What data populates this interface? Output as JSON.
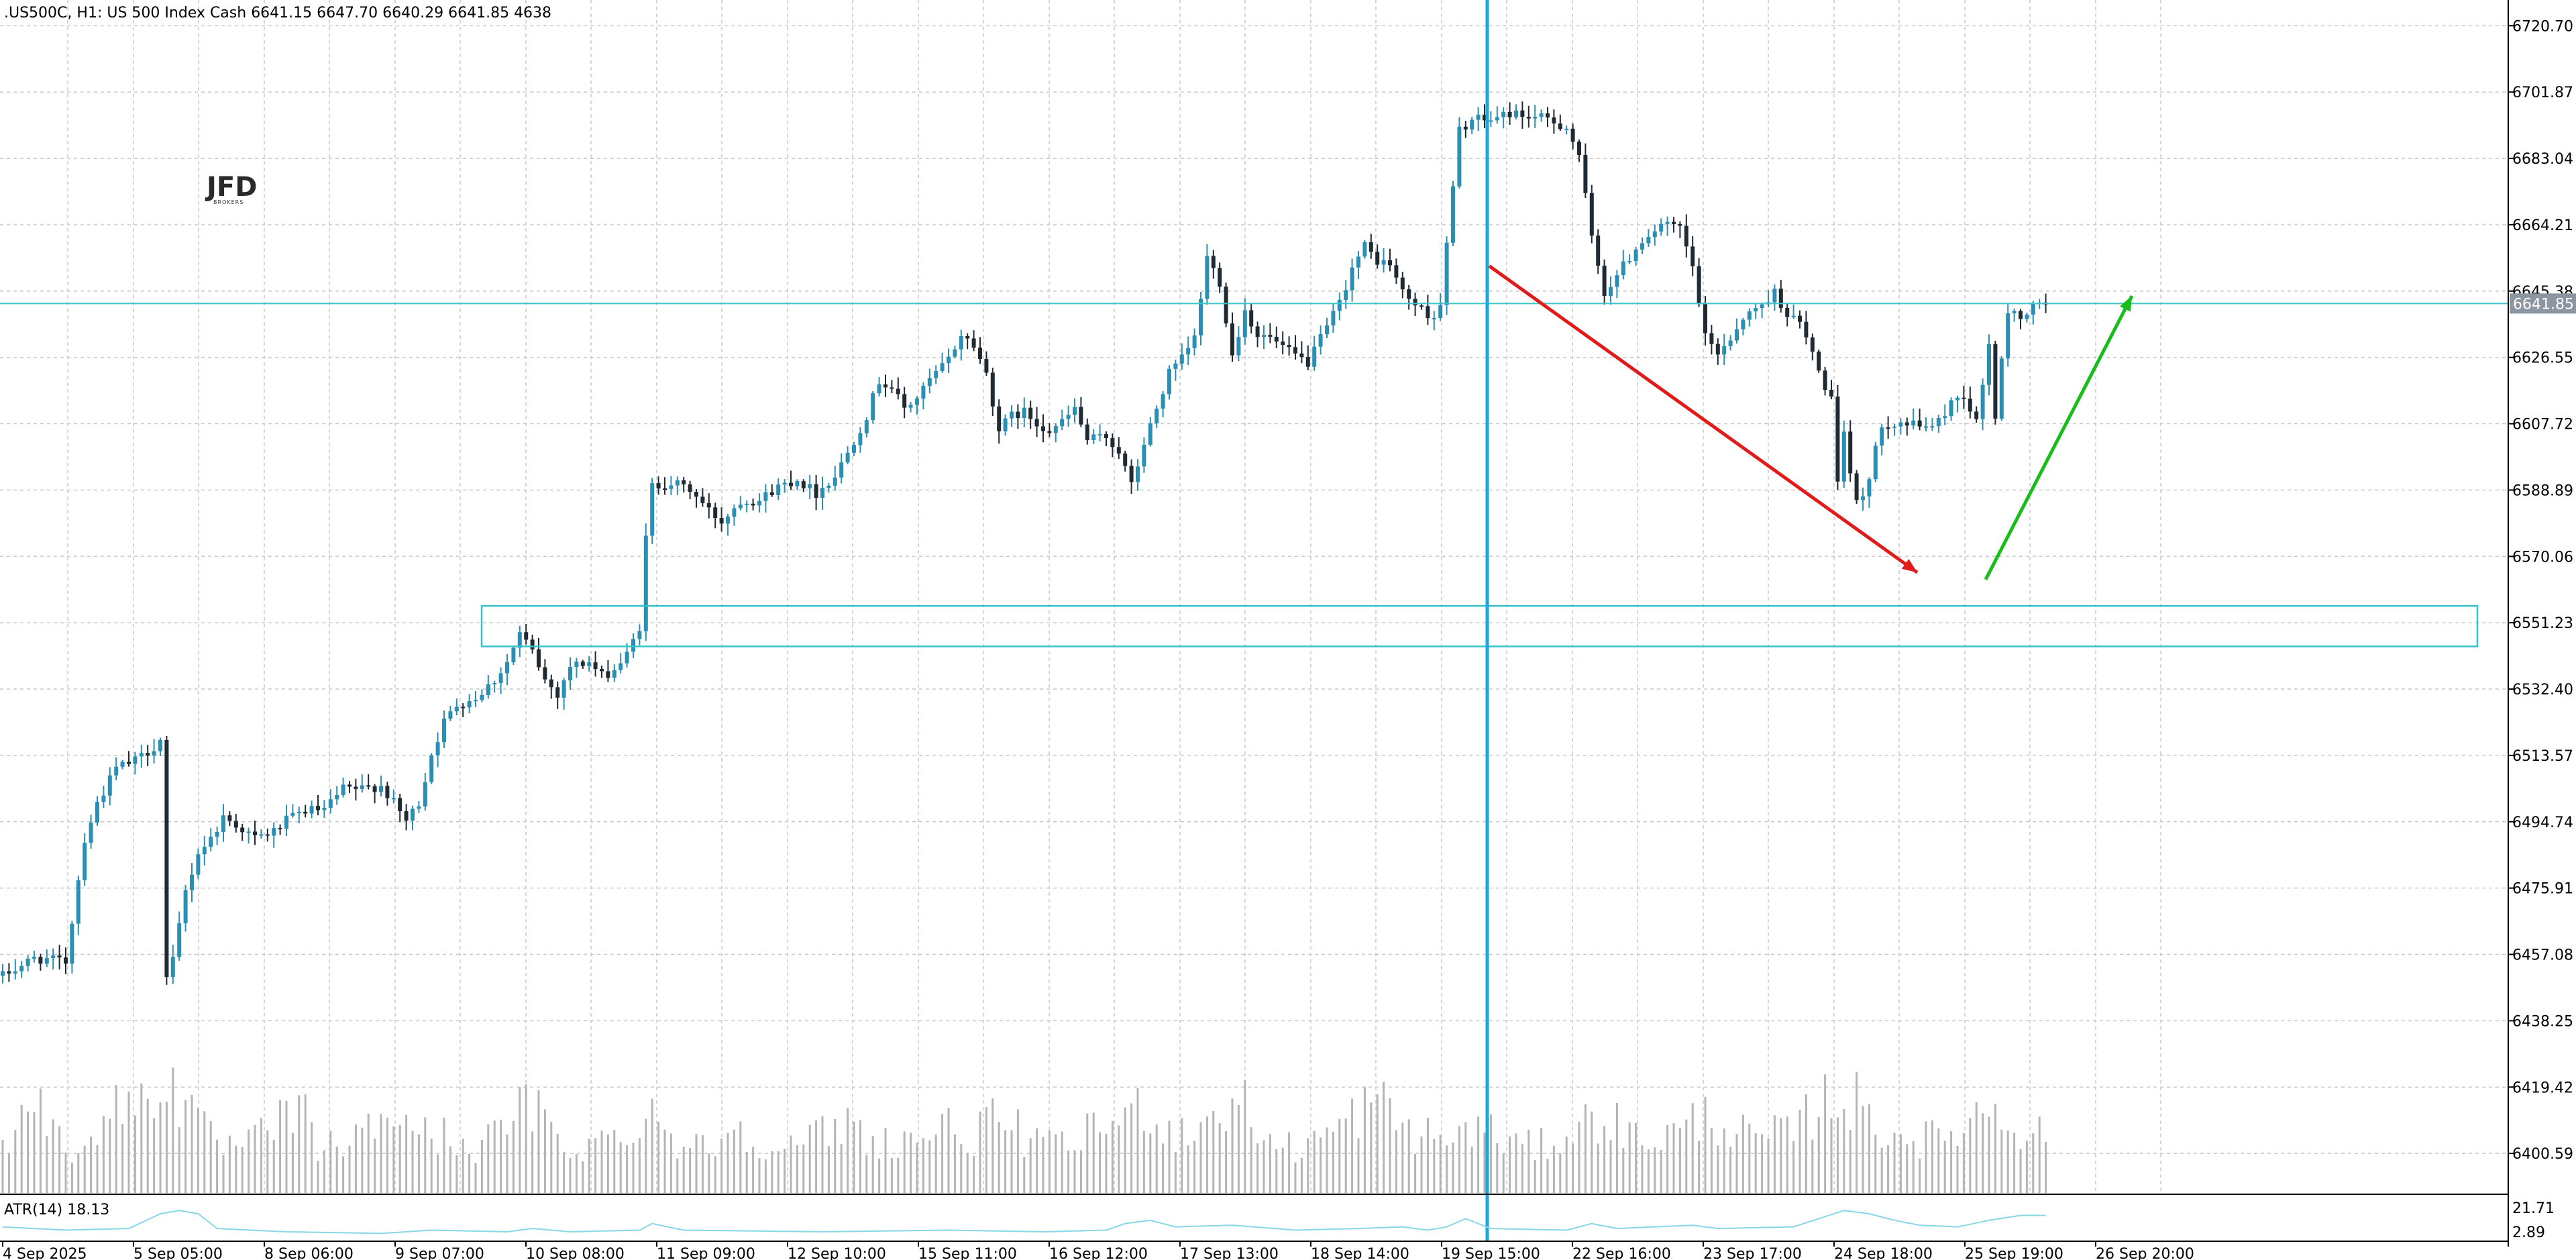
{
  "header": {
    "symbol_text": ".US500C, H1:  US 500 Index Cash  6641.15 6647.70 6640.29 6641.85  4638"
  },
  "logo": {
    "main": "JFD",
    "sub": "BROKERS"
  },
  "indicator": {
    "label": "ATR(14) 18.13",
    "scale_top": "21.71",
    "scale_bottom": "2.89",
    "line_color": "#87d7e6"
  },
  "current_price": {
    "label": "6641.85",
    "value": 6641.85,
    "line_color": "#3cc4cc",
    "label_bg": "#8c96a0"
  },
  "colors": {
    "bull": "#2b8fb3",
    "bear": "#1f2a33",
    "volume": "#b4b4b4",
    "grid": "#c8c8c8",
    "zone": "#34c3cc",
    "vline": "#1aa8e0",
    "down_arrow": "#e11a1a",
    "up_arrow": "#19bd19"
  },
  "annotations": {
    "vertical_line_time": "19 Sep 15:00",
    "support_zone": {
      "from": 6544.5,
      "to": 6556.0,
      "start_time": "10 Sep 08:00"
    },
    "down_arrow": {
      "from_time": "19 Sep 15:00",
      "from_price": 6652.5,
      "to_time": "25 Sep 01:00",
      "to_price": 6565.5
    },
    "up_arrow": {
      "from_time": "25 Sep 07:00",
      "from_price": 6563.5,
      "to_time": "26 Sep 16:00",
      "to_price": 6644.0
    }
  },
  "chart_data": {
    "type": "candlestick",
    "symbol": ".US500C",
    "timeframe": "H1",
    "ylim": [
      6389.0,
      6728.0
    ],
    "y_ticks": [
      "6720.70",
      "6701.87",
      "6683.04",
      "6664.21",
      "6645.38",
      "6626.55",
      "6607.72",
      "6588.89",
      "6570.06",
      "6551.23",
      "6532.40",
      "6513.57",
      "6494.74",
      "6475.91",
      "6457.08",
      "6438.25",
      "6419.42",
      "6400.59"
    ],
    "x_ticks": [
      "4 Sep 2025",
      "5 Sep 05:00",
      "8 Sep 06:00",
      "9 Sep 07:00",
      "10 Sep 08:00",
      "11 Sep 09:00",
      "12 Sep 10:00",
      "15 Sep 11:00",
      "16 Sep 12:00",
      "17 Sep 13:00",
      "18 Sep 14:00",
      "19 Sep 15:00",
      "22 Sep 16:00",
      "23 Sep 17:00",
      "24 Sep 18:00",
      "25 Sep 19:00",
      "26 Sep 20:00"
    ],
    "close_path": [
      [
        0,
        6451
      ],
      [
        5,
        6456
      ],
      [
        10,
        6455
      ],
      [
        13,
        6490
      ],
      [
        15,
        6500
      ],
      [
        18,
        6510
      ],
      [
        21,
        6512
      ],
      [
        24,
        6516
      ],
      [
        25,
        6518
      ],
      [
        26,
        6450
      ],
      [
        27,
        6455
      ],
      [
        29,
        6475
      ],
      [
        31,
        6486
      ],
      [
        33,
        6490
      ],
      [
        35,
        6496
      ],
      [
        37,
        6494
      ],
      [
        40,
        6490
      ],
      [
        43,
        6492
      ],
      [
        45,
        6495
      ],
      [
        48,
        6498
      ],
      [
        51,
        6498
      ],
      [
        54,
        6504
      ],
      [
        57,
        6504
      ],
      [
        60,
        6505
      ],
      [
        62,
        6500
      ],
      [
        64,
        6495
      ],
      [
        66,
        6500
      ],
      [
        68,
        6514
      ],
      [
        70,
        6523
      ],
      [
        72,
        6528
      ],
      [
        75,
        6530
      ],
      [
        78,
        6535
      ],
      [
        80,
        6540
      ],
      [
        82,
        6548
      ],
      [
        84,
        6543
      ],
      [
        86,
        6535
      ],
      [
        88,
        6531
      ],
      [
        90,
        6539
      ],
      [
        93,
        6540
      ],
      [
        95,
        6536
      ],
      [
        97,
        6538
      ],
      [
        99,
        6542
      ],
      [
        101,
        6550
      ],
      [
        102,
        6575
      ],
      [
        103,
        6590
      ],
      [
        106,
        6591
      ],
      [
        109,
        6589
      ],
      [
        112,
        6583
      ],
      [
        114,
        6580
      ],
      [
        117,
        6586
      ],
      [
        120,
        6586
      ],
      [
        123,
        6590
      ],
      [
        126,
        6592
      ],
      [
        129,
        6588
      ],
      [
        132,
        6593
      ],
      [
        135,
        6603
      ],
      [
        137,
        6610
      ],
      [
        139,
        6620
      ],
      [
        141,
        6618
      ],
      [
        143,
        6612
      ],
      [
        145,
        6615
      ],
      [
        147,
        6620
      ],
      [
        150,
        6626
      ],
      [
        152,
        6633
      ],
      [
        154,
        6630
      ],
      [
        156,
        6622
      ],
      [
        158,
        6606
      ],
      [
        160,
        6610
      ],
      [
        162,
        6611
      ],
      [
        164,
        6608
      ],
      [
        166,
        6606
      ],
      [
        168,
        6608
      ],
      [
        170,
        6612
      ],
      [
        172,
        6603
      ],
      [
        175,
        6604
      ],
      [
        177,
        6600
      ],
      [
        179,
        6590
      ],
      [
        181,
        6602
      ],
      [
        183,
        6612
      ],
      [
        185,
        6622
      ],
      [
        187,
        6626
      ],
      [
        189,
        6632
      ],
      [
        191,
        6655
      ],
      [
        193,
        6648
      ],
      [
        195,
        6627
      ],
      [
        197,
        6640
      ],
      [
        199,
        6633
      ],
      [
        201,
        6632
      ],
      [
        204,
        6628
      ],
      [
        207,
        6625
      ],
      [
        210,
        6635
      ],
      [
        212,
        6642
      ],
      [
        214,
        6652
      ],
      [
        216,
        6658
      ],
      [
        218,
        6654
      ],
      [
        220,
        6653
      ],
      [
        222,
        6645
      ],
      [
        225,
        6640
      ],
      [
        227,
        6638
      ],
      [
        228,
        6642
      ],
      [
        231,
        6691
      ],
      [
        233,
        6694
      ],
      [
        236,
        6694
      ],
      [
        239,
        6696
      ],
      [
        242,
        6695
      ],
      [
        245,
        6694
      ],
      [
        248,
        6692
      ],
      [
        250,
        6684
      ],
      [
        252,
        6660
      ],
      [
        254,
        6645
      ],
      [
        256,
        6650
      ],
      [
        258,
        6655
      ],
      [
        260,
        6660
      ],
      [
        263,
        6664
      ],
      [
        266,
        6663
      ],
      [
        268,
        6652
      ],
      [
        270,
        6632
      ],
      [
        272,
        6628
      ],
      [
        274,
        6632
      ],
      [
        276,
        6638
      ],
      [
        278,
        6640
      ],
      [
        281,
        6645
      ],
      [
        283,
        6639
      ],
      [
        285,
        6636
      ],
      [
        287,
        6628
      ],
      [
        288,
        6622
      ],
      [
        290,
        6615
      ],
      [
        291,
        6590
      ],
      [
        292,
        6604
      ],
      [
        294,
        6585
      ],
      [
        296,
        6592
      ],
      [
        298,
        6608
      ],
      [
        301,
        6608
      ],
      [
        304,
        6607
      ],
      [
        307,
        6608
      ],
      [
        309,
        6614
      ],
      [
        311,
        6616
      ],
      [
        313,
        6608
      ],
      [
        315,
        6630
      ],
      [
        316,
        6610
      ],
      [
        318,
        6640
      ],
      [
        320,
        6638
      ],
      [
        323,
        6642
      ],
      [
        324,
        6642
      ]
    ],
    "volume_path": [
      [
        0,
        22
      ],
      [
        3,
        35
      ],
      [
        5,
        55
      ],
      [
        8,
        28
      ],
      [
        11,
        22
      ],
      [
        14,
        30
      ],
      [
        18,
        40
      ],
      [
        21,
        45
      ],
      [
        23,
        48
      ],
      [
        25,
        58
      ],
      [
        27,
        52
      ],
      [
        29,
        44
      ],
      [
        31,
        32
      ],
      [
        34,
        24
      ],
      [
        37,
        22
      ],
      [
        40,
        26
      ],
      [
        43,
        30
      ],
      [
        45,
        40
      ],
      [
        48,
        36
      ],
      [
        50,
        24
      ],
      [
        53,
        22
      ],
      [
        56,
        27
      ],
      [
        59,
        32
      ],
      [
        61,
        38
      ],
      [
        64,
        40
      ],
      [
        66,
        30
      ],
      [
        68,
        26
      ],
      [
        70,
        28
      ],
      [
        73,
        24
      ],
      [
        76,
        22
      ],
      [
        79,
        32
      ],
      [
        82,
        40
      ],
      [
        84,
        42
      ],
      [
        86,
        35
      ],
      [
        88,
        26
      ],
      [
        90,
        22
      ],
      [
        93,
        24
      ],
      [
        96,
        26
      ],
      [
        99,
        30
      ],
      [
        101,
        38
      ],
      [
        103,
        42
      ],
      [
        105,
        30
      ],
      [
        108,
        24
      ],
      [
        111,
        22
      ],
      [
        114,
        28
      ],
      [
        117,
        32
      ],
      [
        119,
        28
      ],
      [
        122,
        24
      ],
      [
        125,
        22
      ],
      [
        128,
        26
      ],
      [
        131,
        30
      ],
      [
        134,
        34
      ],
      [
        136,
        30
      ],
      [
        139,
        26
      ],
      [
        142,
        24
      ],
      [
        145,
        28
      ],
      [
        148,
        30
      ],
      [
        151,
        32
      ],
      [
        154,
        28
      ],
      [
        157,
        34
      ],
      [
        159,
        36
      ],
      [
        161,
        30
      ],
      [
        164,
        24
      ],
      [
        167,
        22
      ],
      [
        170,
        26
      ],
      [
        173,
        30
      ],
      [
        175,
        34
      ],
      [
        177,
        36
      ],
      [
        179,
        38
      ],
      [
        181,
        45
      ],
      [
        183,
        38
      ],
      [
        185,
        30
      ],
      [
        188,
        30
      ],
      [
        191,
        36
      ],
      [
        193,
        40
      ],
      [
        195,
        44
      ],
      [
        197,
        42
      ],
      [
        199,
        30
      ],
      [
        202,
        24
      ],
      [
        205,
        22
      ],
      [
        208,
        26
      ],
      [
        211,
        30
      ],
      [
        213,
        34
      ],
      [
        215,
        40
      ],
      [
        217,
        44
      ],
      [
        219,
        42
      ],
      [
        221,
        36
      ],
      [
        223,
        30
      ],
      [
        226,
        28
      ],
      [
        229,
        26
      ],
      [
        232,
        30
      ],
      [
        234,
        32
      ],
      [
        237,
        28
      ],
      [
        240,
        24
      ],
      [
        243,
        22
      ],
      [
        246,
        26
      ],
      [
        249,
        30
      ],
      [
        252,
        36
      ],
      [
        254,
        40
      ],
      [
        257,
        30
      ],
      [
        260,
        26
      ],
      [
        263,
        28
      ],
      [
        266,
        30
      ],
      [
        268,
        34
      ],
      [
        270,
        38
      ],
      [
        272,
        36
      ],
      [
        275,
        30
      ],
      [
        278,
        26
      ],
      [
        281,
        28
      ],
      [
        284,
        30
      ],
      [
        286,
        36
      ],
      [
        288,
        44
      ],
      [
        290,
        48
      ],
      [
        292,
        46
      ],
      [
        294,
        44
      ],
      [
        296,
        36
      ],
      [
        299,
        30
      ],
      [
        302,
        28
      ],
      [
        305,
        26
      ],
      [
        308,
        28
      ],
      [
        311,
        34
      ],
      [
        313,
        38
      ],
      [
        315,
        44
      ],
      [
        317,
        40
      ],
      [
        319,
        34
      ],
      [
        322,
        30
      ],
      [
        324,
        28
      ]
    ],
    "atr_path": [
      [
        0,
        10
      ],
      [
        10,
        8
      ],
      [
        20,
        9
      ],
      [
        25,
        18
      ],
      [
        28,
        20
      ],
      [
        31,
        18
      ],
      [
        34,
        9
      ],
      [
        45,
        7
      ],
      [
        60,
        6
      ],
      [
        68,
        8
      ],
      [
        80,
        7
      ],
      [
        84,
        9
      ],
      [
        90,
        7
      ],
      [
        101,
        8
      ],
      [
        103,
        12
      ],
      [
        108,
        8
      ],
      [
        130,
        7
      ],
      [
        150,
        8
      ],
      [
        165,
        7
      ],
      [
        175,
        8
      ],
      [
        178,
        12
      ],
      [
        182,
        14
      ],
      [
        186,
        10
      ],
      [
        195,
        11
      ],
      [
        205,
        8
      ],
      [
        215,
        9
      ],
      [
        222,
        10
      ],
      [
        226,
        8
      ],
      [
        229,
        10
      ],
      [
        232,
        15
      ],
      [
        236,
        9
      ],
      [
        248,
        8
      ],
      [
        252,
        12
      ],
      [
        256,
        9
      ],
      [
        268,
        11
      ],
      [
        272,
        9
      ],
      [
        284,
        10
      ],
      [
        288,
        15
      ],
      [
        292,
        20
      ],
      [
        296,
        18
      ],
      [
        300,
        14
      ],
      [
        304,
        11
      ],
      [
        310,
        10
      ],
      [
        315,
        14
      ],
      [
        320,
        17
      ],
      [
        324,
        17
      ]
    ]
  }
}
